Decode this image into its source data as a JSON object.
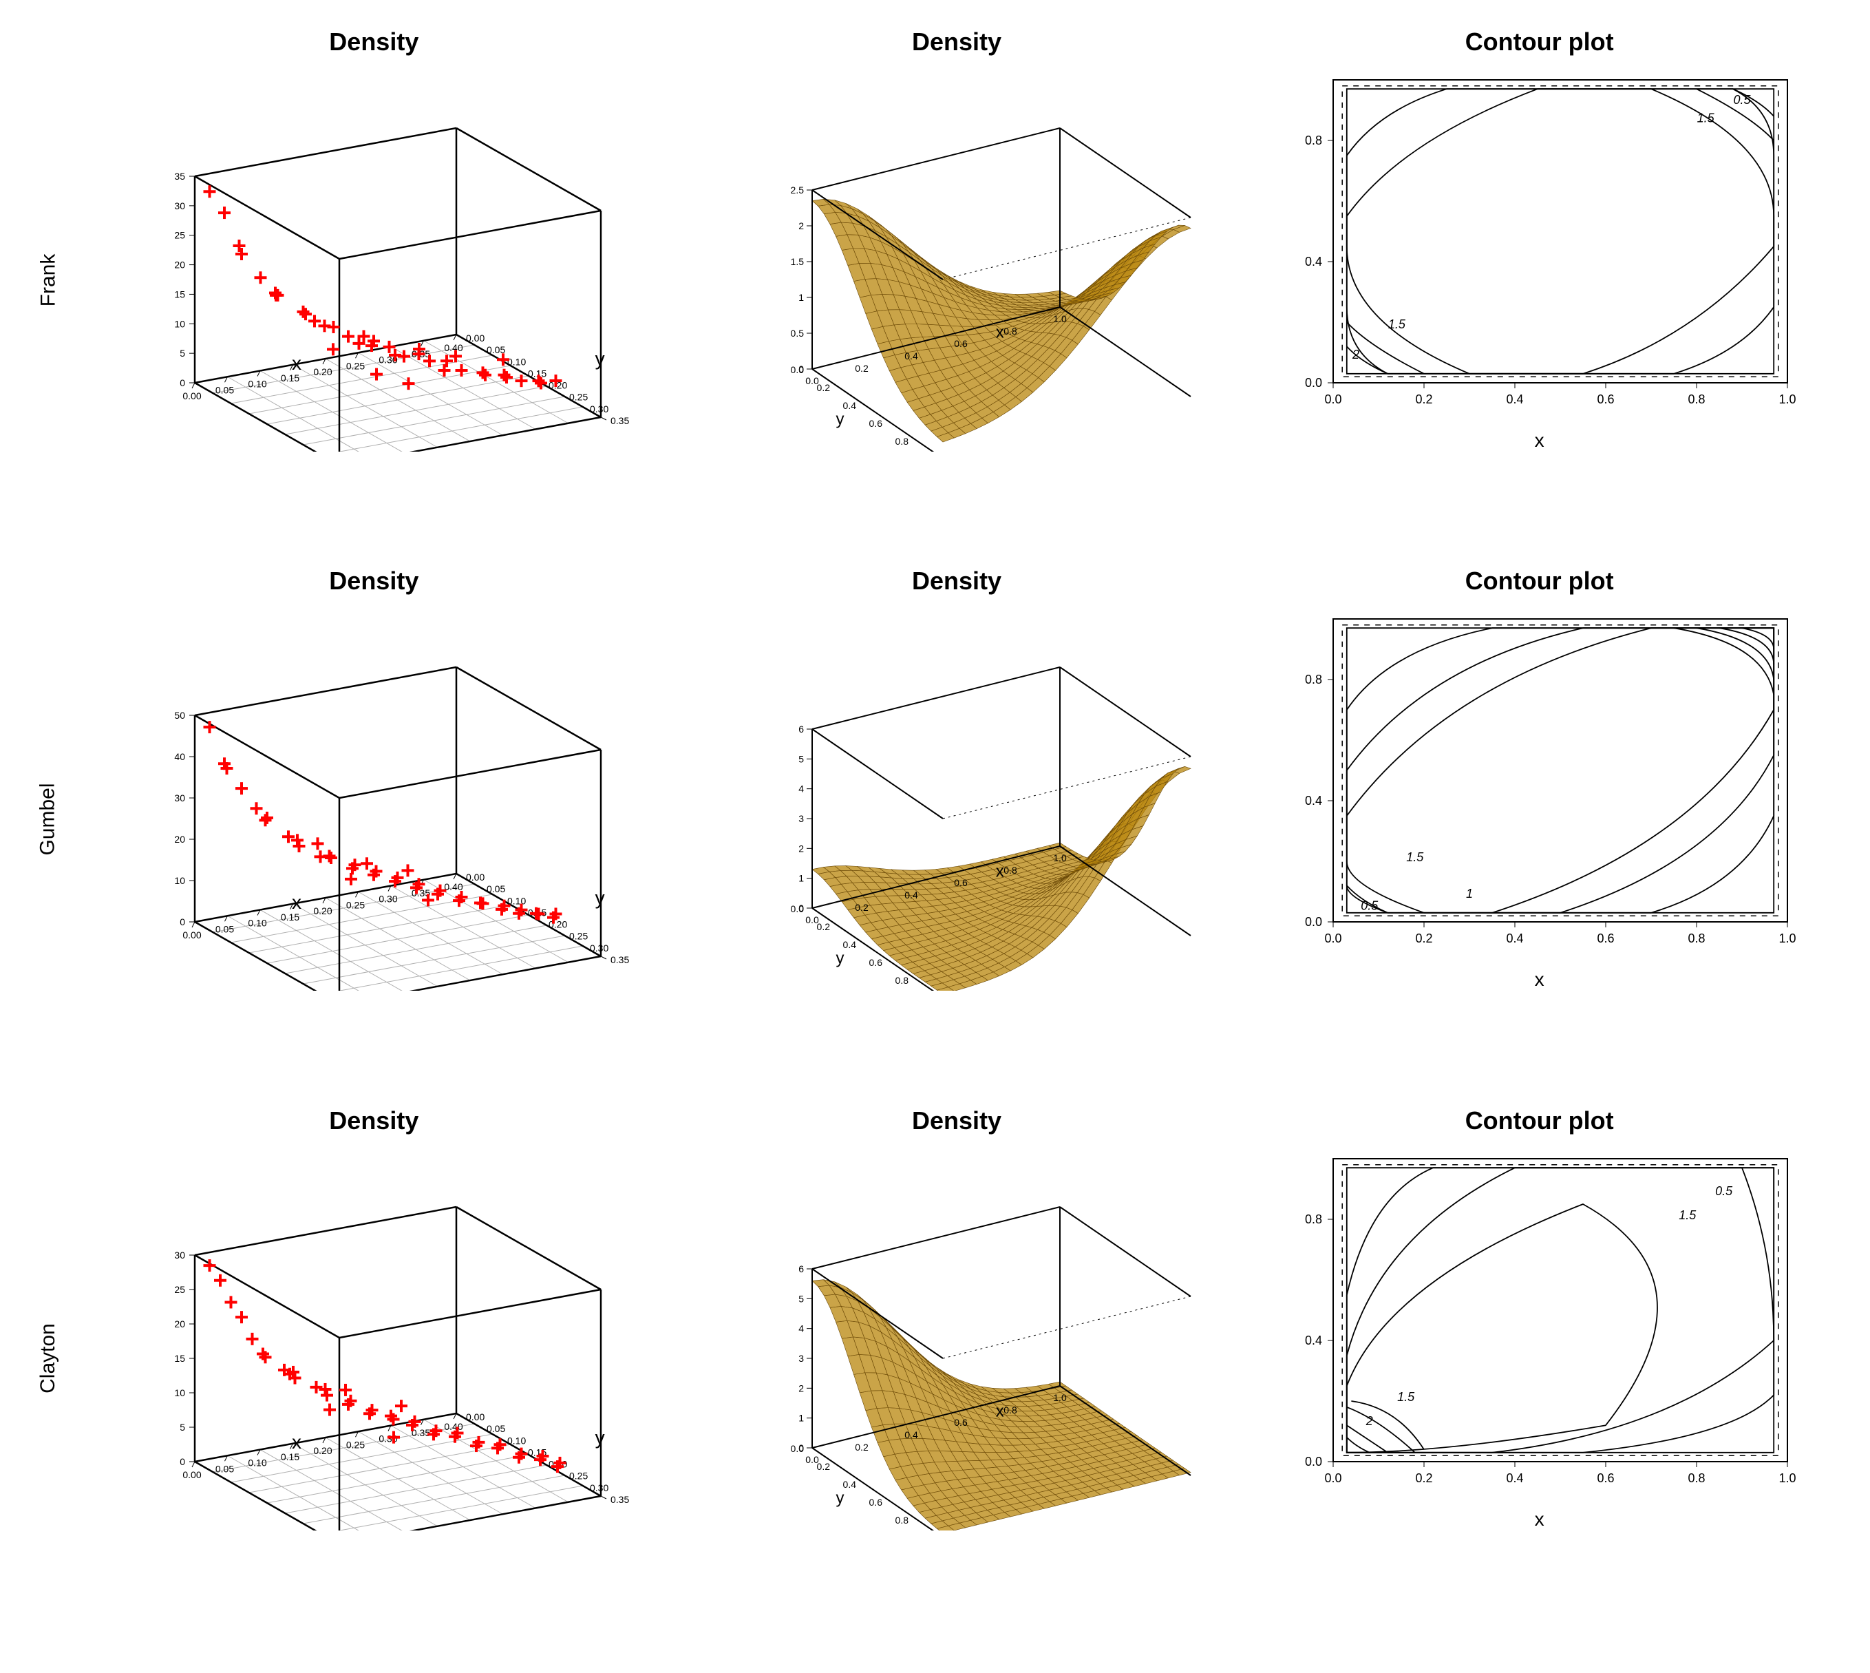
{
  "layout": {
    "rows": [
      "Frank",
      "Gumbel",
      "Clayton"
    ],
    "col_titles": [
      "Density",
      "Density",
      "Contour plot"
    ],
    "background_color": "#ffffff",
    "title_fontsize": 36,
    "row_label_fontsize": 30,
    "tick_fontsize": 18,
    "axis_label_fontsize": 28
  },
  "colors": {
    "scatter_marker": "#ff0000",
    "surface_fill": "#b8860b",
    "surface_stroke": "#6b4a0a",
    "grid_floor": "#b0b0b0",
    "axis_line": "#000000",
    "contour_line": "#000000",
    "dashed_box": "#000000"
  },
  "scatter3d": {
    "type": "scatter3d",
    "marker": "plus",
    "marker_size": 10,
    "xlim": [
      0.0,
      0.4
    ],
    "xtick_step": 0.05,
    "ylim": [
      0.0,
      0.35
    ],
    "ytick_step": 0.05,
    "xlabel": "x",
    "ylabel": "y",
    "rows": {
      "Frank": {
        "zlim": [
          0,
          35
        ],
        "ztick_step": 5,
        "points": [
          [
            0.01,
            0.02,
            33
          ],
          [
            0.02,
            0.04,
            30
          ],
          [
            0.03,
            0.06,
            25
          ],
          [
            0.04,
            0.05,
            23
          ],
          [
            0.05,
            0.08,
            20
          ],
          [
            0.06,
            0.1,
            18
          ],
          [
            0.07,
            0.09,
            17
          ],
          [
            0.08,
            0.07,
            16
          ],
          [
            0.09,
            0.12,
            15
          ],
          [
            0.1,
            0.11,
            14
          ],
          [
            0.11,
            0.14,
            13
          ],
          [
            0.12,
            0.1,
            12
          ],
          [
            0.13,
            0.13,
            12
          ],
          [
            0.14,
            0.15,
            11
          ],
          [
            0.15,
            0.16,
            10
          ],
          [
            0.16,
            0.18,
            11
          ],
          [
            0.17,
            0.14,
            10
          ],
          [
            0.18,
            0.2,
            9
          ],
          [
            0.19,
            0.17,
            9
          ],
          [
            0.2,
            0.19,
            8
          ],
          [
            0.21,
            0.21,
            9
          ],
          [
            0.22,
            0.22,
            8
          ],
          [
            0.23,
            0.24,
            7
          ],
          [
            0.24,
            0.23,
            8
          ],
          [
            0.25,
            0.25,
            7
          ],
          [
            0.26,
            0.22,
            8
          ],
          [
            0.27,
            0.27,
            7
          ],
          [
            0.28,
            0.26,
            6
          ],
          [
            0.29,
            0.29,
            7
          ],
          [
            0.3,
            0.28,
            6
          ],
          [
            0.31,
            0.3,
            6
          ],
          [
            0.32,
            0.24,
            7
          ],
          [
            0.33,
            0.31,
            6
          ],
          [
            0.34,
            0.3,
            5
          ],
          [
            0.35,
            0.32,
            6
          ],
          [
            0.18,
            0.05,
            4
          ],
          [
            0.22,
            0.08,
            5
          ],
          [
            0.28,
            0.1,
            4
          ],
          [
            0.12,
            0.25,
            9
          ],
          [
            0.15,
            0.28,
            8
          ]
        ]
      },
      "Gumbel": {
        "zlim": [
          0,
          50
        ],
        "ztick_step": 10,
        "points": [
          [
            0.01,
            0.02,
            48
          ],
          [
            0.02,
            0.04,
            40
          ],
          [
            0.03,
            0.03,
            38
          ],
          [
            0.04,
            0.05,
            34
          ],
          [
            0.05,
            0.07,
            30
          ],
          [
            0.06,
            0.08,
            28
          ],
          [
            0.07,
            0.06,
            26
          ],
          [
            0.08,
            0.1,
            24
          ],
          [
            0.09,
            0.11,
            22
          ],
          [
            0.1,
            0.09,
            22
          ],
          [
            0.11,
            0.13,
            20
          ],
          [
            0.12,
            0.14,
            20
          ],
          [
            0.13,
            0.12,
            19
          ],
          [
            0.14,
            0.16,
            18
          ],
          [
            0.15,
            0.15,
            18
          ],
          [
            0.16,
            0.18,
            17
          ],
          [
            0.17,
            0.17,
            17
          ],
          [
            0.18,
            0.2,
            16
          ],
          [
            0.19,
            0.19,
            16
          ],
          [
            0.2,
            0.22,
            15
          ],
          [
            0.21,
            0.21,
            15
          ],
          [
            0.22,
            0.24,
            14
          ],
          [
            0.23,
            0.23,
            14
          ],
          [
            0.24,
            0.26,
            13
          ],
          [
            0.25,
            0.25,
            13
          ],
          [
            0.26,
            0.28,
            13
          ],
          [
            0.27,
            0.27,
            12
          ],
          [
            0.28,
            0.3,
            12
          ],
          [
            0.29,
            0.29,
            12
          ],
          [
            0.3,
            0.31,
            11
          ],
          [
            0.31,
            0.3,
            11
          ],
          [
            0.32,
            0.32,
            11
          ],
          [
            0.33,
            0.31,
            10
          ],
          [
            0.34,
            0.33,
            10
          ],
          [
            0.35,
            0.32,
            10
          ],
          [
            0.15,
            0.06,
            18
          ],
          [
            0.2,
            0.1,
            14
          ],
          [
            0.25,
            0.12,
            12
          ],
          [
            0.1,
            0.22,
            20
          ],
          [
            0.18,
            0.28,
            16
          ]
        ]
      },
      "Clayton": {
        "zlim": [
          0,
          30
        ],
        "ztick_step": 5,
        "points": [
          [
            0.01,
            0.02,
            29
          ],
          [
            0.02,
            0.03,
            27
          ],
          [
            0.03,
            0.04,
            24
          ],
          [
            0.04,
            0.05,
            22
          ],
          [
            0.05,
            0.06,
            19
          ],
          [
            0.06,
            0.07,
            17
          ],
          [
            0.07,
            0.06,
            16
          ],
          [
            0.08,
            0.09,
            15
          ],
          [
            0.09,
            0.1,
            14
          ],
          [
            0.1,
            0.08,
            14
          ],
          [
            0.11,
            0.12,
            13
          ],
          [
            0.12,
            0.13,
            12
          ],
          [
            0.13,
            0.11,
            12
          ],
          [
            0.14,
            0.15,
            11
          ],
          [
            0.15,
            0.14,
            11
          ],
          [
            0.16,
            0.17,
            10
          ],
          [
            0.17,
            0.16,
            10
          ],
          [
            0.18,
            0.19,
            10
          ],
          [
            0.19,
            0.18,
            9
          ],
          [
            0.2,
            0.21,
            9
          ],
          [
            0.21,
            0.2,
            9
          ],
          [
            0.22,
            0.23,
            8
          ],
          [
            0.23,
            0.22,
            8
          ],
          [
            0.24,
            0.25,
            8
          ],
          [
            0.25,
            0.24,
            8
          ],
          [
            0.26,
            0.27,
            7
          ],
          [
            0.27,
            0.26,
            7
          ],
          [
            0.28,
            0.29,
            7
          ],
          [
            0.29,
            0.28,
            7
          ],
          [
            0.3,
            0.31,
            6
          ],
          [
            0.31,
            0.3,
            6
          ],
          [
            0.32,
            0.33,
            6
          ],
          [
            0.33,
            0.32,
            6
          ],
          [
            0.34,
            0.34,
            5
          ],
          [
            0.35,
            0.33,
            5
          ],
          [
            0.12,
            0.04,
            12
          ],
          [
            0.18,
            0.08,
            10
          ],
          [
            0.24,
            0.12,
            8
          ],
          [
            0.08,
            0.2,
            13
          ],
          [
            0.14,
            0.26,
            10
          ]
        ]
      }
    }
  },
  "surface3d": {
    "type": "surface3d",
    "xlim": [
      0.0,
      1.0
    ],
    "xtick_step": 0.2,
    "ylim": [
      0.0,
      1.0
    ],
    "ytick_step": 0.2,
    "xlabel": "x",
    "ylabel": "y",
    "rows": {
      "Frank": {
        "zlim": [
          0,
          2.5
        ],
        "zticks": [
          0,
          0.5,
          1.0,
          1.5,
          2.0,
          2.5
        ],
        "peak_corner": "both"
      },
      "Gumbel": {
        "zlim": [
          0,
          6
        ],
        "zticks": [
          0,
          1,
          2,
          3,
          4,
          5,
          6
        ],
        "peak_corner": "high"
      },
      "Clayton": {
        "zlim": [
          0,
          6
        ],
        "zticks": [
          0,
          1,
          2,
          3,
          4,
          5,
          6
        ],
        "peak_corner": "low"
      }
    }
  },
  "contour": {
    "type": "contour",
    "xlim": [
      0.0,
      1.0
    ],
    "ylim": [
      0.0,
      1.0
    ],
    "xticks": [
      0.0,
      0.2,
      0.4,
      0.6,
      0.8,
      1.0
    ],
    "yticks": [
      0.0,
      0.4,
      0.8
    ],
    "xlabel": "x",
    "dashed_box": true,
    "rows": {
      "Frank": {
        "labels": [
          {
            "text": "0.5",
            "x": 0.9,
            "y": 0.92
          },
          {
            "text": "1.5",
            "x": 0.82,
            "y": 0.86
          },
          {
            "text": "1.5",
            "x": 0.14,
            "y": 0.18
          },
          {
            "text": "2",
            "x": 0.05,
            "y": 0.08
          }
        ],
        "contours": [
          "M0.03,0.97 L0.97,0.97 L0.97,0.03 L0.03,0.03 Z",
          "M0.03,0.75 Q0.10,0.90 0.25,0.97 L0.88,0.97 Q0.97,0.90 0.97,0.75 L0.97,0.25 Q0.90,0.10 0.75,0.03 L0.12,0.03 Q0.03,0.10 0.03,0.25 Z",
          "M0.03,0.55 Q0.15,0.80 0.45,0.97 L0.70,0.97 Q0.97,0.80 0.97,0.55 L0.97,0.45 Q0.80,0.15 0.55,0.03 L0.30,0.03 Q0.03,0.20 0.03,0.45 Z",
          "M0.03,0.20 Q0.08,0.12 0.20,0.03",
          "M0.80,0.97 Q0.92,0.88 0.97,0.80",
          "M0.03,0.12 Q0.06,0.07 0.12,0.03",
          "M0.88,0.97 Q0.94,0.93 0.97,0.88"
        ]
      },
      "Gumbel": {
        "labels": [
          {
            "text": "1.5",
            "x": 0.18,
            "y": 0.2
          },
          {
            "text": "1",
            "x": 0.3,
            "y": 0.08
          },
          {
            "text": "0.5",
            "x": 0.08,
            "y": 0.04
          }
        ],
        "contours": [
          "M0.03,0.97 L0.97,0.97 L0.97,0.03 L0.03,0.03 Z",
          "M0.03,0.70 Q0.12,0.90 0.35,0.97 L0.97,0.97 L0.97,0.35 Q0.90,0.12 0.70,0.03 L0.12,0.03 Q0.03,0.08 0.03,0.12 Z",
          "M0.03,0.50 Q0.20,0.85 0.55,0.97 L0.97,0.97 L0.97,0.55 Q0.85,0.20 0.50,0.03 L0.20,0.03 Q0.03,0.12 0.03,0.20 Z",
          "M0.03,0.35 Q0.25,0.80 0.70,0.97 L0.97,0.97 L0.97,0.70 Q0.80,0.25 0.35,0.03",
          "M0.75,0.97 Q0.95,0.92 0.97,0.75",
          "M0.80,0.97 Q0.96,0.93 0.97,0.80",
          "M0.85,0.97 Q0.97,0.94 0.97,0.85",
          "M0.90,0.97 Q0.97,0.95 0.97,0.90",
          "M0.03,0.12 Q0.06,0.07 0.12,0.03"
        ]
      },
      "Clayton": {
        "labels": [
          {
            "text": "0.5",
            "x": 0.86,
            "y": 0.88
          },
          {
            "text": "1.5",
            "x": 0.78,
            "y": 0.8
          },
          {
            "text": "1.5",
            "x": 0.16,
            "y": 0.2
          },
          {
            "text": "2",
            "x": 0.08,
            "y": 0.12
          }
        ],
        "contours": [
          "M0.03,0.97 L0.97,0.97 L0.97,0.03 L0.03,0.03 Z",
          "M0.03,0.55 Q0.08,0.88 0.22,0.97 L0.97,0.97 L0.97,0.22 Q0.88,0.08 0.55,0.03 L0.03,0.03 Z",
          "M0.03,0.35 Q0.10,0.75 0.40,0.97 L0.90,0.97 Q0.97,0.70 0.97,0.40 Q0.75,0.10 0.35,0.03 L0.03,0.03 Z",
          "M0.03,0.25 Q0.12,0.60 0.55,0.85 Q0.85,0.60 0.60,0.12 Q0.25,0.03 0.03,0.03 Z",
          "M0.03,0.18 Q0.10,0.14 0.18,0.03",
          "M0.03,0.12 Q0.07,0.08 0.12,0.03",
          "M0.03,0.08 Q0.05,0.05 0.08,0.03",
          "M0.04,0.20 Q0.14,0.18 0.20,0.04"
        ]
      }
    }
  }
}
